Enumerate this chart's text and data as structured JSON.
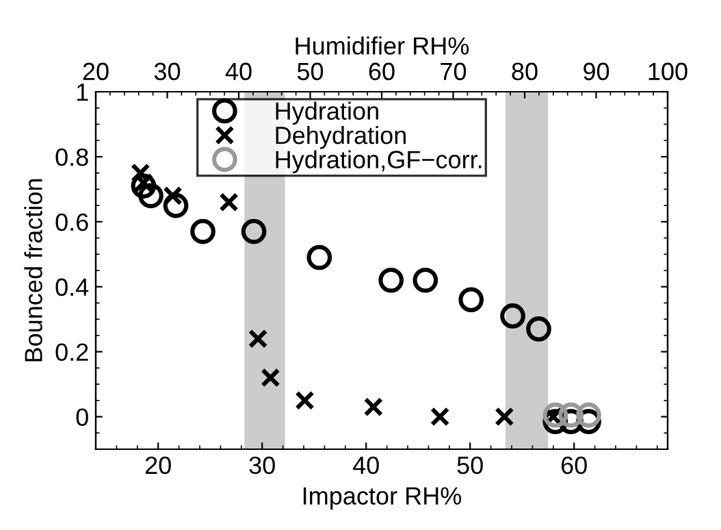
{
  "chart_data": {
    "type": "scatter",
    "xlabel": "Impactor RH%",
    "ylabel": "Bounced fraction",
    "x2label": "Humidifier RH%",
    "xlim": [
      14,
      69
    ],
    "xticks": [
      20,
      30,
      40,
      50,
      60
    ],
    "x2lim": [
      20,
      100
    ],
    "x2ticks": [
      20,
      30,
      40,
      50,
      60,
      70,
      80,
      90,
      100
    ],
    "ylim": [
      -0.1,
      1
    ],
    "yticks": [
      0,
      0.2,
      0.4,
      0.6,
      0.8,
      1
    ],
    "legend": "top",
    "grid": false,
    "bands": [
      {
        "axis": "x",
        "from": 28.3,
        "to": 32.2,
        "color": "#cccccc"
      },
      {
        "axis": "x",
        "from": 53.4,
        "to": 57.5,
        "color": "#cccccc"
      }
    ],
    "series": [
      {
        "name": "Hydration",
        "color": "#000000",
        "marker": "circle",
        "x": [
          18.6,
          19.3,
          21.7,
          24.3,
          29.2,
          35.5,
          42.4,
          45.7,
          50.1,
          54.1,
          56.6,
          58.2,
          59.7,
          61.4
        ],
        "values": [
          0.71,
          0.68,
          0.65,
          0.57,
          0.57,
          0.49,
          0.42,
          0.42,
          0.36,
          0.31,
          0.27,
          -0.015,
          -0.015,
          -0.015
        ]
      },
      {
        "name": "Dehydration",
        "color": "#000000",
        "marker": "cross",
        "x": [
          18.3,
          18.6,
          21.4,
          26.8,
          29.6,
          30.8,
          34.1,
          40.7,
          47.1,
          53.3,
          58.0
        ],
        "values": [
          0.75,
          0.72,
          0.68,
          0.66,
          0.24,
          0.12,
          0.05,
          0.03,
          0.0,
          0.0,
          0.0
        ]
      },
      {
        "name": "Hydration,GF−corr.",
        "color": "#999999",
        "marker": "circle",
        "x": [
          58.2,
          59.7,
          61.4
        ],
        "values": [
          0.005,
          0.005,
          0.005
        ]
      }
    ]
  }
}
